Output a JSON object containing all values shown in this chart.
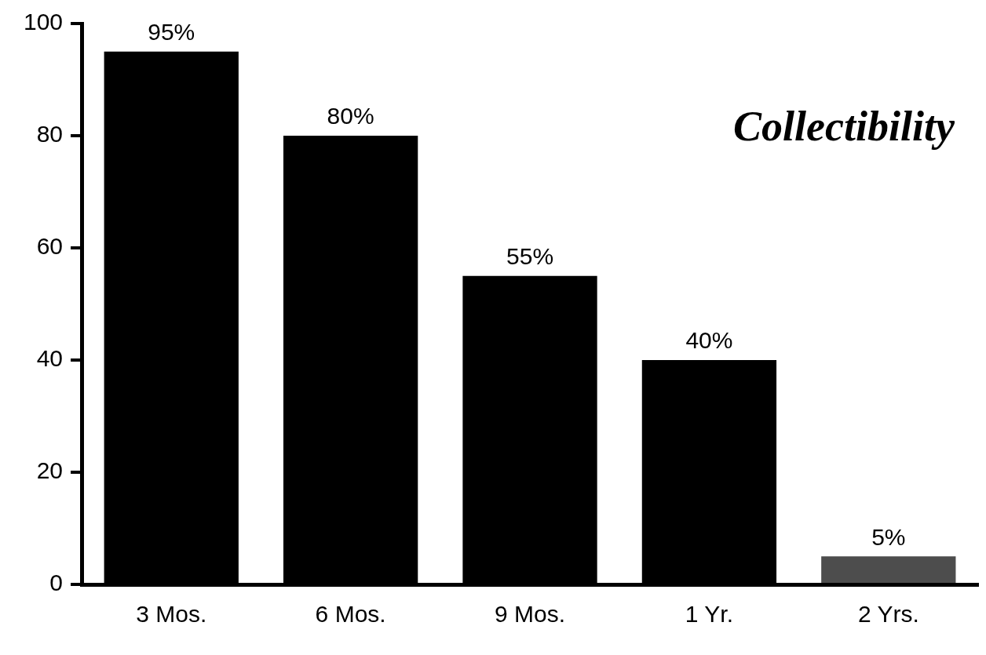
{
  "chart_data": {
    "type": "bar",
    "title": "Collectibility",
    "categories": [
      "3 Mos.",
      "6 Mos.",
      "9 Mos.",
      "1 Yr.",
      "2 Yrs."
    ],
    "values": [
      95,
      80,
      55,
      40,
      5
    ],
    "colors": [
      "#000000",
      "#000000",
      "#000000",
      "#000000",
      "#4d4d4d"
    ],
    "value_labels": [
      "95%",
      "80%",
      "55%",
      "40%",
      "5%"
    ],
    "ylim": [
      0,
      100
    ],
    "yticks": [
      0,
      20,
      40,
      60,
      80,
      100
    ],
    "grid": false,
    "legend": false
  }
}
